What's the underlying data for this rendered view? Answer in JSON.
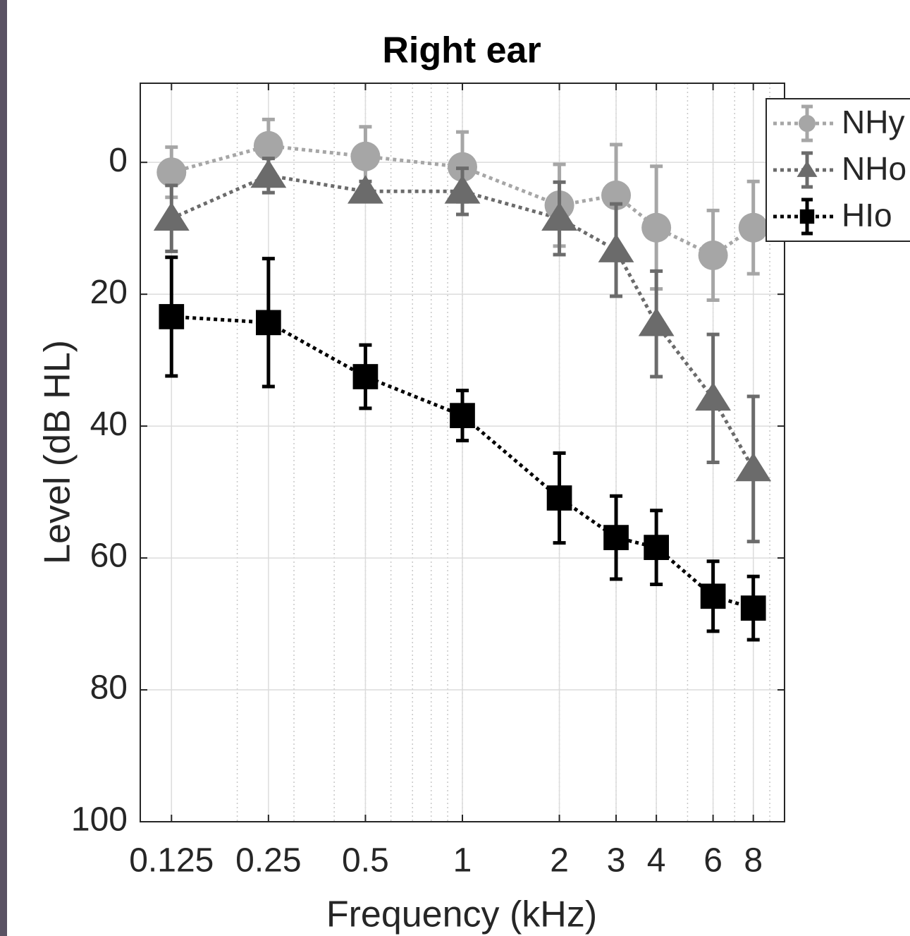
{
  "chart_data": {
    "type": "errorbar-line",
    "title": "Right ear",
    "x_label": "Frequency (kHz)",
    "y_label": "Level (dB HL)",
    "x": [
      0.125,
      0.25,
      0.5,
      1,
      2,
      3,
      4,
      6,
      8
    ],
    "x_log": true,
    "y_reversed": true,
    "xlim": [
      0.1,
      10
    ],
    "ylim": [
      -12,
      100
    ],
    "xticks": [
      0.125,
      0.25,
      0.5,
      1,
      2,
      3,
      4,
      6,
      8
    ],
    "yticks": [
      0,
      20,
      40,
      60,
      80,
      100
    ],
    "grid": true,
    "minor_grid": true,
    "legend": "top-right",
    "series": [
      {
        "name": "NHy",
        "color": "#a6a6a6",
        "marker": "circle",
        "values": [
          1.5,
          -2.5,
          -0.9,
          0.7,
          6.5,
          5.0,
          9.9,
          14.1,
          9.9
        ],
        "errors": [
          3.8,
          4.0,
          4.5,
          5.3,
          6.2,
          7.7,
          9.3,
          6.8,
          7.0
        ]
      },
      {
        "name": "NHo",
        "color": "#6b6b6b",
        "marker": "triangle",
        "values": [
          8.5,
          2.0,
          4.4,
          4.4,
          8.5,
          13.3,
          24.5,
          35.8,
          46.5
        ],
        "errors": [
          5.0,
          2.6,
          1.5,
          3.5,
          5.5,
          7.0,
          8.0,
          9.7,
          11.0
        ]
      },
      {
        "name": "HIo",
        "color": "#000000",
        "marker": "square",
        "values": [
          23.4,
          24.3,
          32.5,
          38.4,
          50.9,
          56.9,
          58.4,
          65.8,
          67.6
        ],
        "errors": [
          9.0,
          9.7,
          4.8,
          3.8,
          6.8,
          6.3,
          5.6,
          5.3,
          4.8
        ]
      }
    ]
  }
}
